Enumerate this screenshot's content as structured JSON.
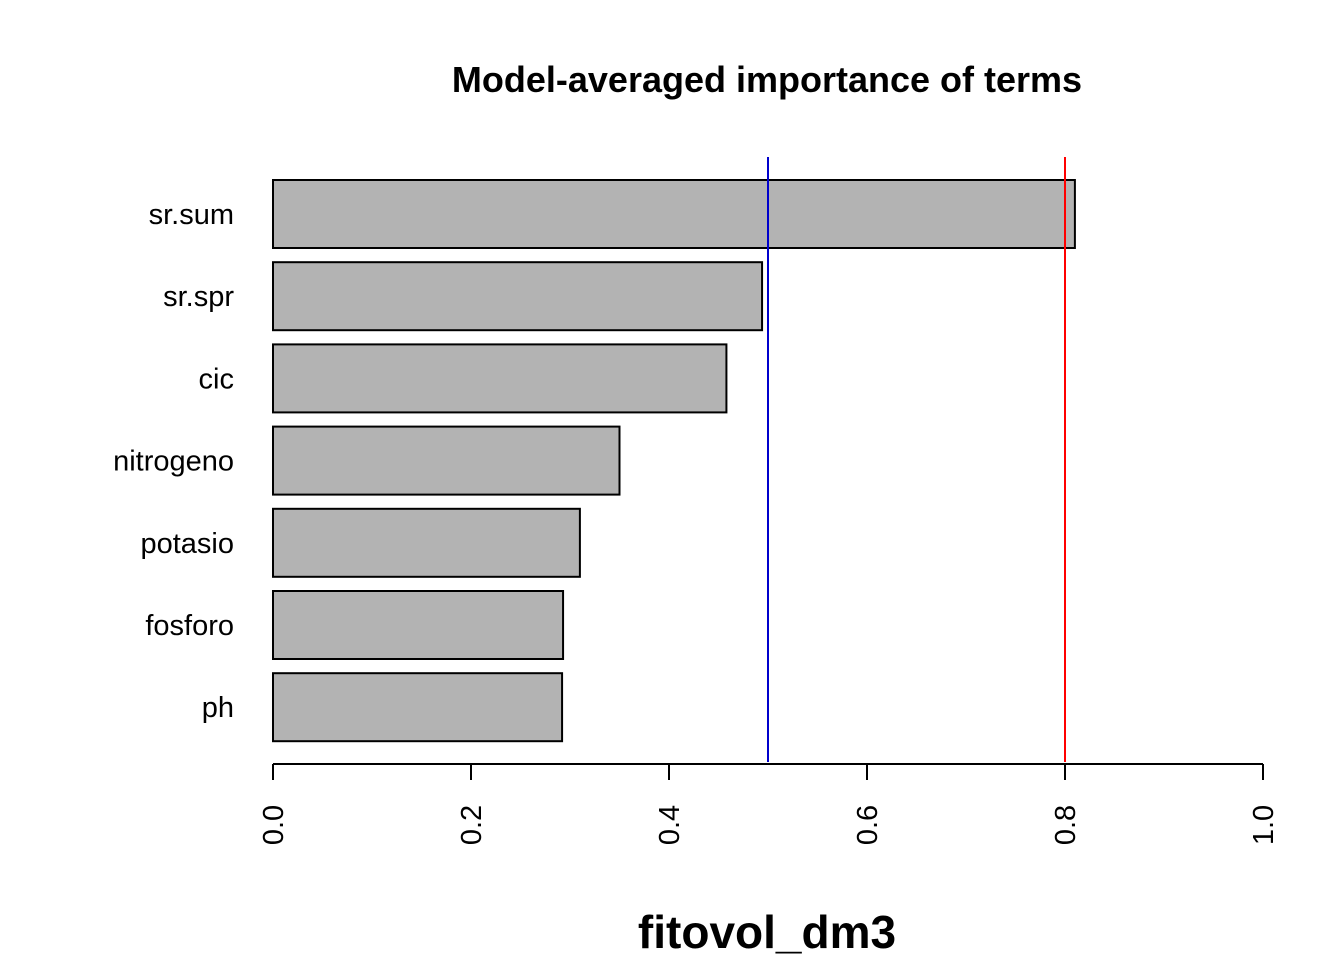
{
  "chart_data": {
    "type": "bar",
    "orientation": "horizontal",
    "title": "Model-averaged importance of terms",
    "xlabel": "fitovol_dm3",
    "ylabel": "",
    "categories": [
      "sr.sum",
      "sr.spr",
      "cic",
      "nitrogeno",
      "potasio",
      "fosforo",
      "ph"
    ],
    "values": [
      0.81,
      0.494,
      0.458,
      0.35,
      0.31,
      0.293,
      0.292
    ],
    "xlim": [
      0,
      1
    ],
    "xticks": [
      "0.0",
      "0.2",
      "0.4",
      "0.6",
      "0.8",
      "1.0"
    ],
    "xtick_values": [
      0,
      0.2,
      0.4,
      0.6,
      0.8,
      1.0
    ],
    "reference_lines": [
      {
        "value": 0.5,
        "color": "#0000cc"
      },
      {
        "value": 0.8,
        "color": "#ff0000"
      }
    ],
    "bar_color": "#b3b3b3",
    "grid": false,
    "legend": "none"
  }
}
